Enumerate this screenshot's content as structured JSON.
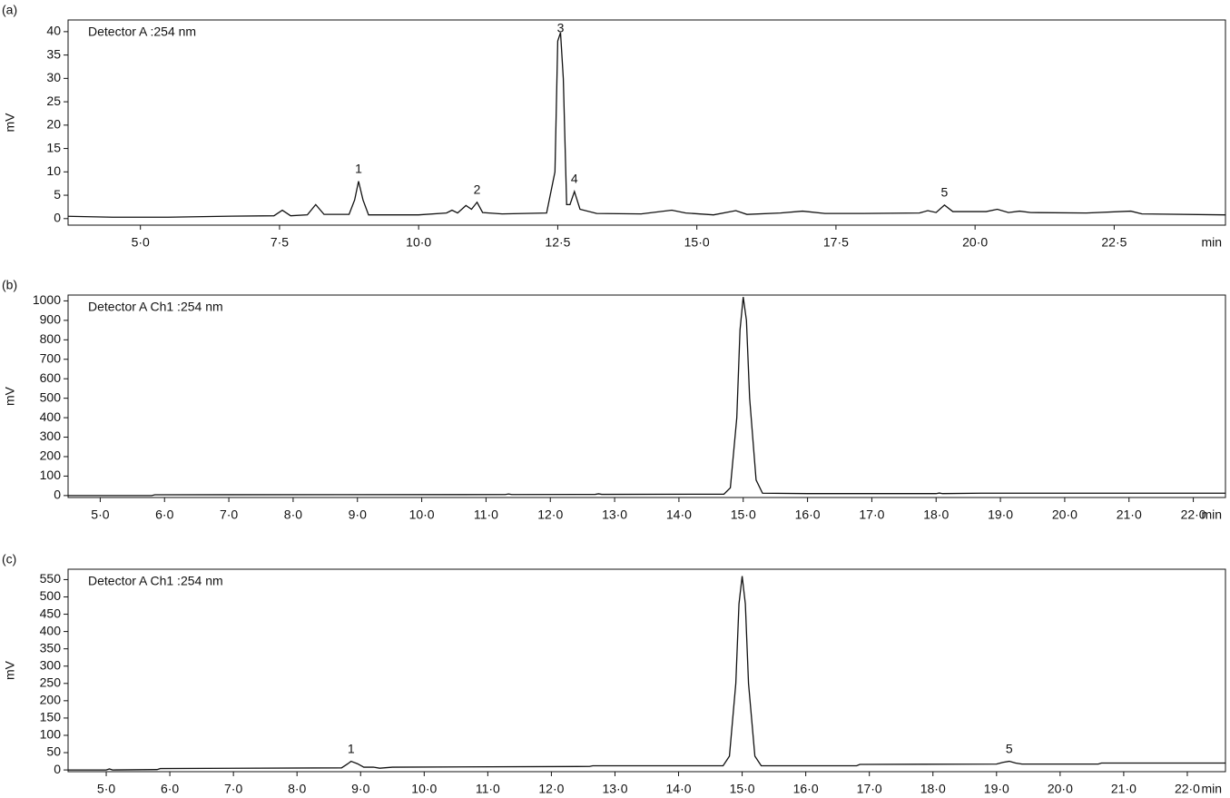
{
  "chart_data": [
    {
      "type": "line",
      "panel": "(a)",
      "annotation": "Detector A :254 nm",
      "y_label": "mV",
      "x_label": "min",
      "color": "#111111",
      "x": [
        3.7,
        4.5,
        5.5,
        6.5,
        7.4,
        7.55,
        7.7,
        8.0,
        8.15,
        8.3,
        8.75,
        8.85,
        8.92,
        9.0,
        9.1,
        9.6,
        10.0,
        10.5,
        10.6,
        10.7,
        10.85,
        10.95,
        11.05,
        11.15,
        11.5,
        12.3,
        12.45,
        12.5,
        12.55,
        12.6,
        12.66,
        12.72,
        12.8,
        12.9,
        13.2,
        14.0,
        14.55,
        14.8,
        15.3,
        15.7,
        15.9,
        16.5,
        16.9,
        17.3,
        18.0,
        19.0,
        19.15,
        19.3,
        19.45,
        19.6,
        20.2,
        20.4,
        20.6,
        20.8,
        21.0,
        22.0,
        22.8,
        23.0,
        24.5
      ],
      "values": [
        0.5,
        0.3,
        0.3,
        0.5,
        0.6,
        1.8,
        0.6,
        0.8,
        3,
        0.9,
        0.9,
        4,
        8,
        4,
        0.8,
        0.8,
        0.8,
        1.2,
        1.8,
        1.2,
        2.8,
        2.0,
        3.5,
        1.3,
        1.0,
        1.2,
        10,
        38,
        39.8,
        30,
        3,
        3,
        5.8,
        2,
        1.1,
        1.0,
        1.8,
        1.2,
        0.8,
        1.7,
        0.9,
        1.2,
        1.6,
        1.1,
        1.1,
        1.2,
        1.7,
        1.3,
        2.9,
        1.5,
        1.5,
        2.0,
        1.3,
        1.6,
        1.3,
        1.2,
        1.6,
        1.0,
        0.8
      ],
      "peaks": [
        {
          "label": "1",
          "x": 8.92,
          "y": 8
        },
        {
          "label": "2",
          "x": 11.05,
          "y": 3.5
        },
        {
          "label": "3",
          "x": 12.55,
          "y": 39.8
        },
        {
          "label": "4",
          "x": 12.8,
          "y": 5.8
        },
        {
          "label": "5",
          "x": 19.45,
          "y": 2.9
        }
      ],
      "xlim": [
        3.7,
        24.5
      ],
      "ylim": [
        -1.4,
        42.5
      ],
      "xticks": [
        {
          "value": 5,
          "label": "5·0"
        },
        {
          "value": 7.5,
          "label": "7·5"
        },
        {
          "value": 10,
          "label": "10·0"
        },
        {
          "value": 12.5,
          "label": "12·5"
        },
        {
          "value": 15,
          "label": "15·0"
        },
        {
          "value": 17.5,
          "label": "17·5"
        },
        {
          "value": 20,
          "label": "20·0"
        },
        {
          "value": 22.5,
          "label": "22·5"
        }
      ],
      "yticks": [
        0,
        5,
        10,
        15,
        20,
        25,
        30,
        35,
        40
      ]
    },
    {
      "type": "line",
      "panel": "(b)",
      "annotation": "Detector A Ch1 :254 nm",
      "y_label": "mV",
      "x_label": "min",
      "color": "#111111",
      "x": [
        4.5,
        5.8,
        5.85,
        11.3,
        11.35,
        11.4,
        12.7,
        12.75,
        12.8,
        14.7,
        14.8,
        14.9,
        14.95,
        15.0,
        15.05,
        15.1,
        15.2,
        15.3,
        16.0,
        18.0,
        18.05,
        18.1,
        18.7,
        22.5
      ],
      "values": [
        0,
        0,
        4,
        5,
        8,
        5,
        6,
        9,
        6,
        7,
        40,
        400,
        850,
        1020,
        900,
        500,
        80,
        12,
        10,
        10,
        13,
        10,
        12,
        12
      ],
      "peaks": [],
      "xlim": [
        4.5,
        22.5
      ],
      "ylim": [
        -10,
        1030
      ],
      "xticks": [
        {
          "value": 5,
          "label": "5·0"
        },
        {
          "value": 6,
          "label": "6·0"
        },
        {
          "value": 7,
          "label": "7·0"
        },
        {
          "value": 8,
          "label": "8·0"
        },
        {
          "value": 9,
          "label": "9·0"
        },
        {
          "value": 10,
          "label": "10·0"
        },
        {
          "value": 11,
          "label": "11·0"
        },
        {
          "value": 12,
          "label": "12·0"
        },
        {
          "value": 13,
          "label": "13·0"
        },
        {
          "value": 14,
          "label": "14·0"
        },
        {
          "value": 15,
          "label": "15·0"
        },
        {
          "value": 16,
          "label": "16·0"
        },
        {
          "value": 17,
          "label": "17·0"
        },
        {
          "value": 18,
          "label": "18·0"
        },
        {
          "value": 19,
          "label": "19·0"
        },
        {
          "value": 20,
          "label": "20·0"
        },
        {
          "value": 21,
          "label": "21·0"
        },
        {
          "value": 22,
          "label": "22·0"
        }
      ],
      "yticks": [
        0,
        100,
        200,
        300,
        400,
        500,
        600,
        700,
        800,
        900,
        1000
      ]
    },
    {
      "type": "line",
      "panel": "(c)",
      "annotation": "Detector A Ch1 :254 nm",
      "y_label": "mV",
      "x_label": "min",
      "color": "#111111",
      "x": [
        4.4,
        5.0,
        5.05,
        5.1,
        5.8,
        5.85,
        8.7,
        8.8,
        8.85,
        8.95,
        9.05,
        9.2,
        9.3,
        9.5,
        12.6,
        12.65,
        14.7,
        14.8,
        14.9,
        14.95,
        15.0,
        15.05,
        15.1,
        15.2,
        15.3,
        16.8,
        16.85,
        19.0,
        19.1,
        19.2,
        19.3,
        19.4,
        20.6,
        20.65,
        22.6
      ],
      "values": [
        0,
        0,
        3,
        0,
        1,
        4,
        6,
        18,
        25,
        18,
        8,
        8,
        5,
        8,
        10,
        12,
        12,
        40,
        250,
        480,
        560,
        480,
        250,
        40,
        12,
        12,
        16,
        17,
        22,
        25,
        20,
        17,
        17,
        20,
        20
      ],
      "peaks": [
        {
          "label": "1",
          "x": 8.85,
          "y": 25
        },
        {
          "label": "5",
          "x": 19.2,
          "y": 25
        }
      ],
      "xlim": [
        4.4,
        22.6
      ],
      "ylim": [
        -5,
        580
      ],
      "xticks": [
        {
          "value": 5,
          "label": "5·0"
        },
        {
          "value": 6,
          "label": "6·0"
        },
        {
          "value": 7,
          "label": "7·0"
        },
        {
          "value": 8,
          "label": "8·0"
        },
        {
          "value": 9,
          "label": "9·0"
        },
        {
          "value": 10,
          "label": "10·0"
        },
        {
          "value": 11,
          "label": "11·0"
        },
        {
          "value": 12,
          "label": "12·0"
        },
        {
          "value": 13,
          "label": "13·0"
        },
        {
          "value": 14,
          "label": "14·0"
        },
        {
          "value": 15,
          "label": "15·0"
        },
        {
          "value": 16,
          "label": "16·0"
        },
        {
          "value": 17,
          "label": "17·0"
        },
        {
          "value": 18,
          "label": "18·0"
        },
        {
          "value": 19,
          "label": "19·0"
        },
        {
          "value": 20,
          "label": "20·0"
        },
        {
          "value": 21,
          "label": "21·0"
        },
        {
          "value": 22,
          "label": "22·0"
        }
      ],
      "yticks": [
        0,
        50,
        100,
        150,
        200,
        250,
        300,
        350,
        400,
        450,
        500,
        550
      ]
    }
  ]
}
